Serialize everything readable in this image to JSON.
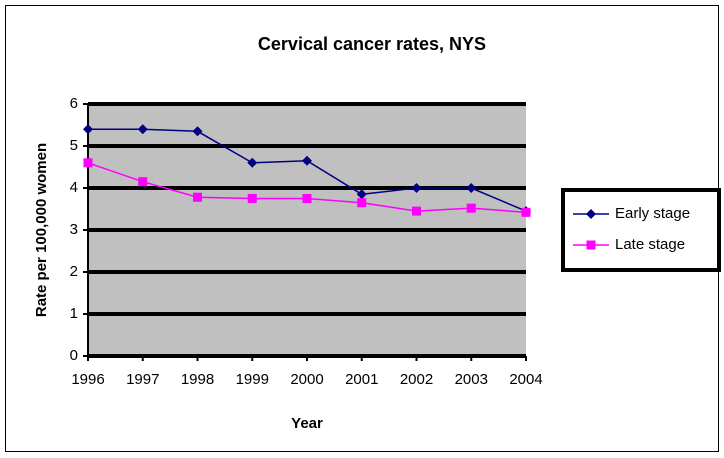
{
  "chart_data": {
    "type": "line",
    "title": "Cervical cancer rates, NYS",
    "x_label": "Year",
    "y_label": "Rate per 100,000 women",
    "categories": [
      "1996",
      "1997",
      "1998",
      "1999",
      "2000",
      "2001",
      "2002",
      "2003",
      "2004"
    ],
    "series": [
      {
        "name": "Early stage",
        "color": "#000080",
        "marker": "diamond",
        "values": [
          5.4,
          5.4,
          5.35,
          4.6,
          4.65,
          3.85,
          4.0,
          4.0,
          3.45
        ]
      },
      {
        "name": "Late stage",
        "color": "#ff00ff",
        "marker": "square",
        "values": [
          4.6,
          4.15,
          3.78,
          3.75,
          3.75,
          3.65,
          3.45,
          3.52,
          3.42
        ]
      }
    ],
    "ylim": [
      0,
      6
    ],
    "yticks": [
      0,
      1,
      2,
      3,
      4,
      5,
      6
    ],
    "grid": true,
    "legend": "right"
  }
}
